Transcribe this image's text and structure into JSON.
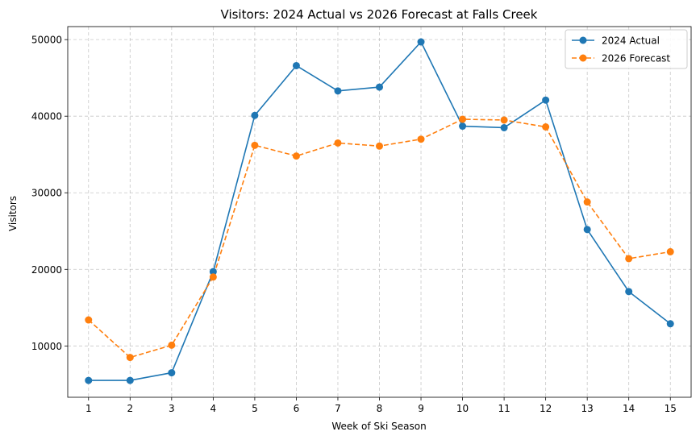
{
  "chart_data": {
    "type": "line",
    "title": "Visitors: 2024 Actual vs 2026 Forecast at Falls Creek",
    "xlabel": "Week of Ski Season",
    "ylabel": "Visitors",
    "x": [
      1,
      2,
      3,
      4,
      5,
      6,
      7,
      8,
      9,
      10,
      11,
      12,
      13,
      14,
      15
    ],
    "xlim": [
      0.5,
      15.5
    ],
    "ylim": [
      3300,
      51700
    ],
    "yticks": [
      10000,
      20000,
      30000,
      40000,
      50000
    ],
    "grid": true,
    "grid_style": "dashed",
    "legend_position": "top-right",
    "series": [
      {
        "name": "2024 Actual",
        "color": "#1f77b4",
        "linestyle": "solid",
        "marker": "circle",
        "values": [
          5500,
          5500,
          6500,
          19700,
          40100,
          46600,
          43300,
          43800,
          49700,
          38700,
          38500,
          42100,
          25200,
          17100,
          12900
        ]
      },
      {
        "name": "2026 Forecast",
        "color": "#ff7f0e",
        "linestyle": "dashed",
        "marker": "circle",
        "values": [
          13400,
          8500,
          10100,
          19000,
          36200,
          34800,
          36500,
          36100,
          37000,
          39600,
          39500,
          38600,
          28800,
          21400,
          22300
        ]
      }
    ]
  }
}
